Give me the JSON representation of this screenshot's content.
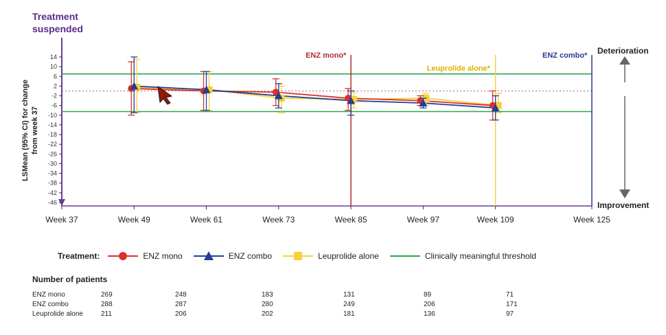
{
  "chart_data": {
    "type": "line",
    "title": "",
    "xlabel": "",
    "ylabel": "LSMean (95% CI) for change from week 37",
    "x": [
      37,
      49,
      61,
      73,
      85,
      97,
      109,
      125
    ],
    "x_tick_labels": [
      "Week 37",
      "Week 49",
      "Week 61",
      "Week 73",
      "Week 85",
      "Week 97",
      "Week 109",
      "Week 125"
    ],
    "ylim": [
      -46,
      14
    ],
    "y_ticks": [
      14,
      10,
      6,
      2,
      -2,
      -6,
      -10,
      -14,
      -18,
      -22,
      -26,
      -30,
      -34,
      -38,
      -42,
      -46
    ],
    "series": [
      {
        "name": "ENZ mono",
        "color": "#d9302c",
        "marker": "circle",
        "x": [
          49,
          61,
          73,
          85,
          97,
          109
        ],
        "y": [
          1,
          0,
          -0.5,
          -3,
          -4,
          -6
        ],
        "lower": [
          -10,
          -8,
          -6,
          -8,
          -6,
          -12
        ],
        "upper": [
          12,
          8,
          5,
          1,
          -2,
          0
        ]
      },
      {
        "name": "ENZ combo",
        "color": "#233e95",
        "marker": "triangle",
        "x": [
          49,
          61,
          73,
          85,
          97,
          109
        ],
        "y": [
          2,
          0.5,
          -2,
          -4,
          -5,
          -7
        ],
        "lower": [
          -9,
          -8,
          -7,
          -10,
          -7,
          -12
        ],
        "upper": [
          14,
          8,
          3,
          0,
          -3,
          -2
        ]
      },
      {
        "name": "Leuprolide alone",
        "color": "#f5d13b",
        "marker": "square",
        "x": [
          49,
          61,
          73,
          85,
          97,
          109
        ],
        "y": [
          1.5,
          0.5,
          -3,
          -3.5,
          -3,
          -6
        ],
        "lower": [
          -9,
          -8,
          -9,
          -7,
          -6,
          -9
        ],
        "upper": [
          13,
          8,
          2,
          -0.5,
          -1,
          -1
        ]
      }
    ],
    "thresholds": {
      "name": "Clinically meaningful threshold",
      "color": "#2aa64a",
      "values": [
        7,
        -8.5
      ]
    },
    "reference_line": 0,
    "vertical_lines": [
      {
        "x": 85,
        "color": "#b22c2c",
        "label": "ENZ mono*"
      },
      {
        "x": 109,
        "color": "#f5d13b",
        "label": "Leuprolide alone*"
      },
      {
        "x": 125,
        "color": "#233e95",
        "label": "ENZ combo*"
      }
    ],
    "annotations": {
      "top_left_line1": "Treatment",
      "top_left_line2": "suspended",
      "deterioration": "Deterioration",
      "improvement": "Improvement"
    }
  },
  "legend": {
    "title": "Treatment:",
    "items": [
      {
        "label": "ENZ mono",
        "color": "#d9302c",
        "marker": "circle"
      },
      {
        "label": "ENZ combo",
        "color": "#233e95",
        "marker": "triangle"
      },
      {
        "label": "Leuprolide alone",
        "color": "#f5d13b",
        "marker": "square"
      },
      {
        "label": "Clinically meaningful threshold",
        "color": "#2aa64a",
        "marker": "line"
      }
    ]
  },
  "patients": {
    "title": "Number of patients",
    "rows": [
      {
        "label": "ENZ mono",
        "values": [
          "269",
          "248",
          "183",
          "131",
          "89",
          "71"
        ]
      },
      {
        "label": "ENZ combo",
        "values": [
          "288",
          "287",
          "280",
          "249",
          "206",
          "171"
        ]
      },
      {
        "label": "Leuprolide alone",
        "values": [
          "211",
          "206",
          "202",
          "181",
          "136",
          "97"
        ]
      }
    ]
  }
}
